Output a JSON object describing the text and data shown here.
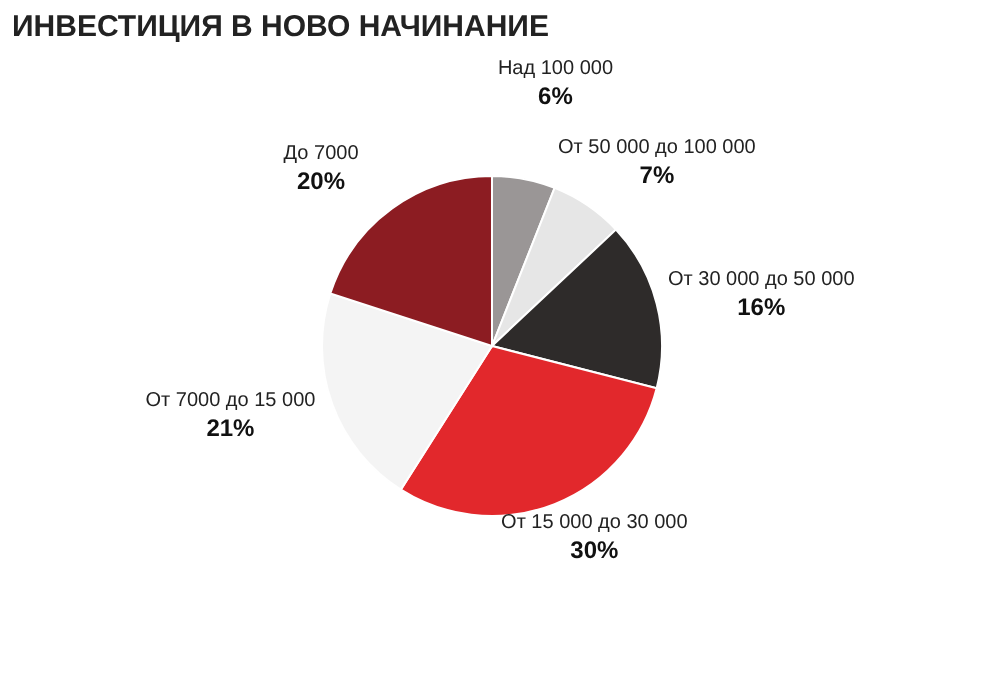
{
  "chart_data": {
    "type": "pie",
    "title": "ИНВЕСТИЦИЯ В НОВО НАЧИНАНИЕ",
    "categories": [
      "Над 100 000",
      "От 50 000 до 100 000",
      "От 30 000 до 50 000",
      "От 15 000 до 30 000",
      "От 7000 до 15 000",
      "До 7000"
    ],
    "values": [
      6,
      7,
      16,
      30,
      21,
      20
    ],
    "value_labels": [
      "6%",
      "7%",
      "16%",
      "30%",
      "21%",
      "20%"
    ],
    "colors": [
      "#9a9696",
      "#e6e6e6",
      "#2e2b2a",
      "#e2282c",
      "#f4f4f4",
      "#8c1c22"
    ]
  }
}
